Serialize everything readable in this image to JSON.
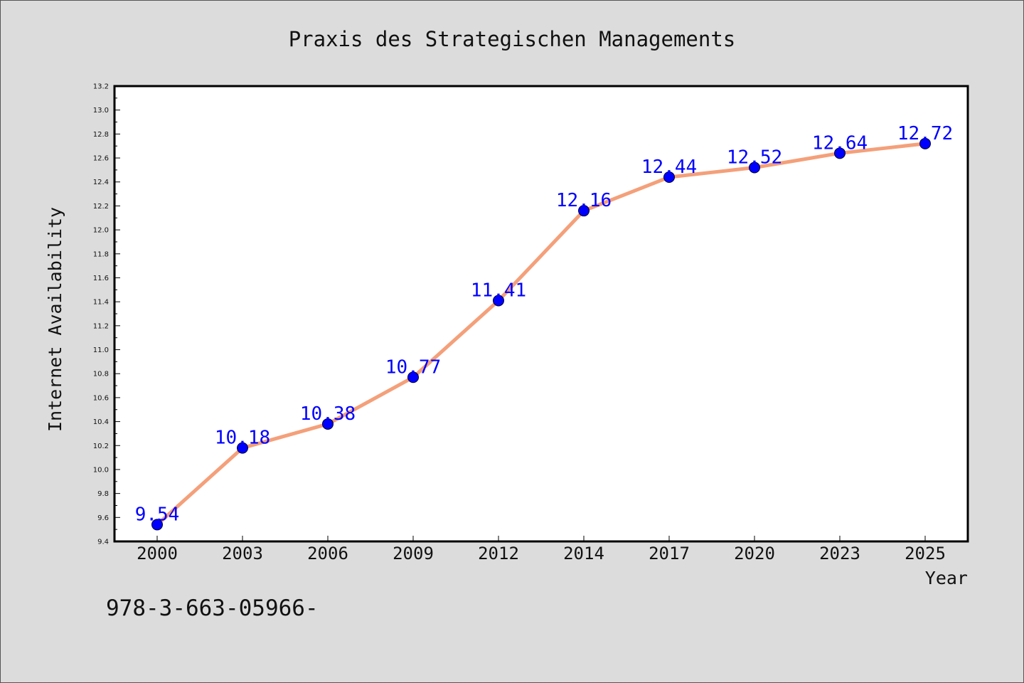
{
  "chart_data": {
    "type": "line",
    "title": "Praxis des Strategischen Managements",
    "xlabel": "Year",
    "ylabel": "Internet Availability",
    "categories": [
      "2000",
      "2003",
      "2006",
      "2009",
      "2012",
      "2014",
      "2017",
      "2020",
      "2023",
      "2025"
    ],
    "series": [
      {
        "values": [
          9.54,
          10.18,
          10.38,
          10.77,
          11.41,
          12.16,
          12.44,
          12.52,
          12.64,
          12.72
        ]
      }
    ],
    "data_labels": [
      "9.54",
      "10.18",
      "10.38",
      "10.77",
      "11.41",
      "12.16",
      "12.44",
      "12.52",
      "12.64",
      "12.72"
    ],
    "ylim": [
      9.4,
      13.2
    ],
    "y_ticks": [
      "9.4",
      "9.6",
      "9.8",
      "10.0",
      "10.2",
      "10.4",
      "10.6",
      "10.8",
      "11.0",
      "11.2",
      "11.4",
      "11.6",
      "11.8",
      "12.0",
      "12.2",
      "12.4",
      "12.6",
      "12.8",
      "13.0",
      "13.2"
    ],
    "grid": false,
    "legend": "none",
    "colors": {
      "line": "#f4a07a",
      "marker": "#0000ff",
      "label": "#0000ff",
      "background": "#dcdcdc",
      "plot_background": "#ffffff"
    }
  },
  "footer": {
    "isbn": "978-3-663-05966-"
  }
}
